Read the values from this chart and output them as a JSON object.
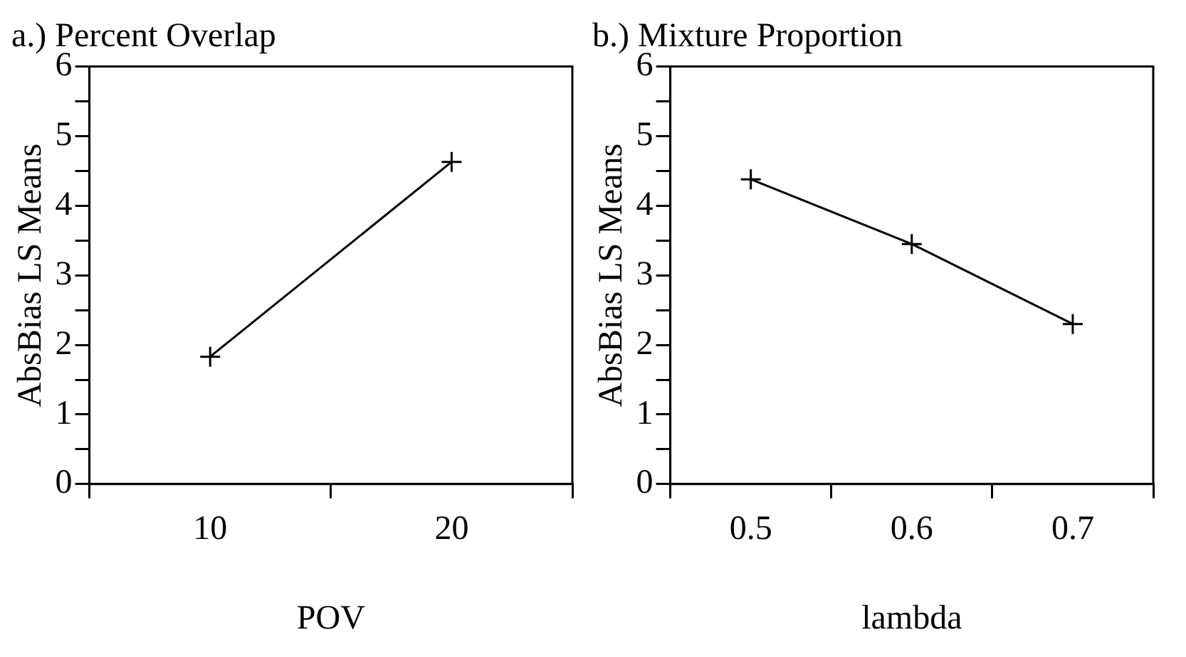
{
  "chart_data": [
    {
      "type": "line",
      "title": "a.) Percent Overlap",
      "xlabel": "POV",
      "ylabel": "AbsBias LS Means",
      "categories": [
        "10",
        "20"
      ],
      "series": [
        {
          "color": "#000000",
          "values": [
            1.83,
            4.63
          ]
        }
      ],
      "ylim": [
        0,
        6
      ],
      "yticks": [
        0,
        {
          "value": 0.5,
          "label": null
        },
        1,
        {
          "value": 1.5,
          "label": null
        },
        2,
        {
          "value": 2.5,
          "label": null
        },
        3,
        {
          "value": 3.5,
          "label": null
        },
        4,
        {
          "value": 4.5,
          "label": null
        },
        5,
        {
          "value": 5.5,
          "label": null
        },
        6
      ],
      "marker": "cross",
      "line_style": "solid",
      "grid": false,
      "legend": false
    },
    {
      "type": "line",
      "title": "b.) Mixture Proportion",
      "xlabel": "lambda",
      "ylabel": "AbsBias LS Means",
      "categories": [
        "0.5",
        "0.6",
        "0.7"
      ],
      "series": [
        {
          "color": "#000000",
          "values": [
            4.38,
            3.45,
            2.3
          ]
        }
      ],
      "ylim": [
        0,
        6
      ],
      "yticks": [
        0,
        {
          "value": 0.5,
          "label": null
        },
        1,
        {
          "value": 1.5,
          "label": null
        },
        2,
        {
          "value": 2.5,
          "label": null
        },
        3,
        {
          "value": 3.5,
          "label": null
        },
        4,
        {
          "value": 4.5,
          "label": null
        },
        5,
        {
          "value": 5.5,
          "label": null
        },
        6
      ],
      "marker": "cross",
      "line_style": "solid",
      "grid": false,
      "legend": false
    }
  ]
}
